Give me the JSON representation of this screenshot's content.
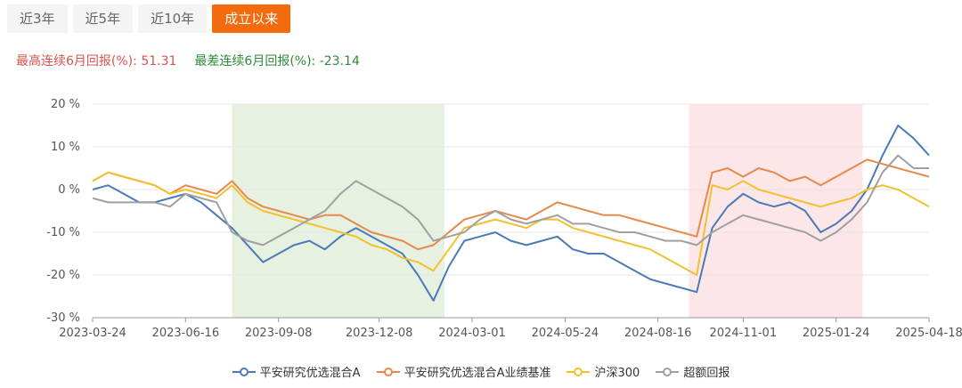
{
  "tabs": [
    {
      "label": "近3年",
      "active": false
    },
    {
      "label": "近5年",
      "active": false
    },
    {
      "label": "近10年",
      "active": false
    },
    {
      "label": "成立以来",
      "active": true
    }
  ],
  "stats": {
    "best_label": "最高连续6月回报(%):",
    "best_value": "51.31",
    "worst_label": "最差连续6月回报(%):",
    "worst_value": "-23.14"
  },
  "colors": {
    "fund": "#4a7ab8",
    "benchmark": "#e8884a",
    "csi300": "#f2c12e",
    "excess": "#a0a0a0",
    "band_green": "#e6f1e2",
    "band_red": "#fde6e8",
    "tab_active": "#f26b0f"
  },
  "chart_data": {
    "type": "line",
    "x_range": [
      "2023-03-24",
      "2025-04-18"
    ],
    "xticks": [
      "2023-03-24",
      "2023-06-16",
      "2023-09-08",
      "2023-12-08",
      "2024-03-01",
      "2024-05-24",
      "2024-08-16",
      "2024-11-01",
      "2025-01-24",
      "2025-04-18"
    ],
    "ylim": [
      -30,
      20
    ],
    "yticks": [
      20,
      10,
      0,
      -10,
      -20,
      -30
    ],
    "ytick_labels": [
      "20 %",
      "10 %",
      "0 %",
      "-10 %",
      "-20 %",
      "-30 %"
    ],
    "shaded_ranges": [
      {
        "start": "2023-07-28",
        "end": "2024-02-05",
        "color": "green"
      },
      {
        "start": "2024-09-13",
        "end": "2025-02-17",
        "color": "red"
      }
    ],
    "x_dates": [
      "2023-03-24",
      "2023-04-07",
      "2023-04-21",
      "2023-05-05",
      "2023-05-19",
      "2023-06-02",
      "2023-06-16",
      "2023-06-30",
      "2023-07-14",
      "2023-07-28",
      "2023-08-11",
      "2023-08-25",
      "2023-09-08",
      "2023-09-22",
      "2023-10-06",
      "2023-10-20",
      "2023-11-03",
      "2023-11-17",
      "2023-12-01",
      "2023-12-15",
      "2023-12-29",
      "2024-01-12",
      "2024-01-26",
      "2024-02-09",
      "2024-02-23",
      "2024-03-08",
      "2024-03-22",
      "2024-04-05",
      "2024-04-19",
      "2024-05-03",
      "2024-05-17",
      "2024-05-31",
      "2024-06-14",
      "2024-06-28",
      "2024-07-12",
      "2024-07-26",
      "2024-08-09",
      "2024-08-23",
      "2024-09-06",
      "2024-09-20",
      "2024-10-04",
      "2024-10-18",
      "2024-11-01",
      "2024-11-15",
      "2024-11-29",
      "2024-12-13",
      "2024-12-27",
      "2025-01-10",
      "2025-01-24",
      "2025-02-07",
      "2025-02-21",
      "2025-03-07",
      "2025-03-21",
      "2025-04-04",
      "2025-04-18"
    ],
    "series": [
      {
        "name": "平安研究优选混合A",
        "color_key": "fund",
        "values": [
          0,
          1,
          -1,
          -3,
          -3,
          -2,
          -1,
          -3,
          -6,
          -9,
          -13,
          -17,
          -15,
          -13,
          -12,
          -14,
          -11,
          -9,
          -11,
          -13,
          -15,
          -20,
          -26,
          -18,
          -12,
          -11,
          -10,
          -12,
          -13,
          -12,
          -11,
          -14,
          -15,
          -15,
          -17,
          -19,
          -21,
          -22,
          -23,
          -24,
          -9,
          -4,
          -1,
          -3,
          -4,
          -3,
          -5,
          -10,
          -8,
          -5,
          0,
          8,
          15,
          12,
          8
        ]
      },
      {
        "name": "平安研究优选混合A业绩基准",
        "color_key": "benchmark",
        "values": [
          2,
          4,
          3,
          2,
          1,
          -1,
          1,
          0,
          -1,
          2,
          -2,
          -4,
          -5,
          -6,
          -7,
          -6,
          -6,
          -8,
          -10,
          -11,
          -12,
          -14,
          -13,
          -10,
          -7,
          -6,
          -5,
          -6,
          -7,
          -5,
          -3,
          -4,
          -5,
          -6,
          -6,
          -7,
          -8,
          -9,
          -10,
          -11,
          4,
          5,
          3,
          5,
          4,
          2,
          3,
          1,
          3,
          5,
          7,
          6,
          5,
          4,
          3
        ]
      },
      {
        "name": "沪深300",
        "color_key": "csi300",
        "values": [
          2,
          4,
          3,
          2,
          1,
          -1,
          0,
          -1,
          -2,
          1,
          -3,
          -5,
          -6,
          -7,
          -8,
          -9,
          -10,
          -11,
          -13,
          -14,
          -16,
          -17,
          -19,
          -14,
          -9,
          -8,
          -7,
          -8,
          -9,
          -7,
          -7,
          -9,
          -10,
          -11,
          -12,
          -13,
          -14,
          -16,
          -18,
          -20,
          1,
          0,
          2,
          0,
          -1,
          -2,
          -3,
          -4,
          -3,
          -2,
          0,
          1,
          0,
          -2,
          -4
        ]
      },
      {
        "name": "超额回报",
        "color_key": "excess",
        "values": [
          -2,
          -3,
          -3,
          -3,
          -3,
          -4,
          -1,
          -2,
          -3,
          -10,
          -12,
          -13,
          -11,
          -9,
          -7,
          -5,
          -1,
          2,
          0,
          -2,
          -4,
          -7,
          -12,
          -11,
          -10,
          -7,
          -5,
          -7,
          -8,
          -7,
          -6,
          -8,
          -8,
          -9,
          -10,
          -10,
          -11,
          -12,
          -12,
          -13,
          -10,
          -8,
          -6,
          -7,
          -8,
          -9,
          -10,
          -12,
          -10,
          -7,
          -3,
          4,
          8,
          5,
          5
        ]
      }
    ]
  }
}
